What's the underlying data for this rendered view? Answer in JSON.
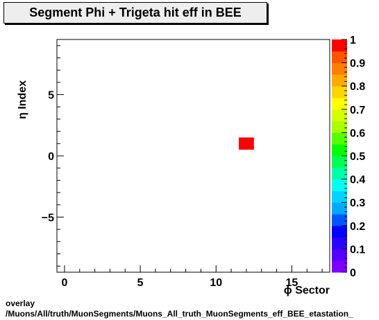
{
  "chart_data": {
    "type": "heatmap",
    "title": "Segment Phi + Trigeta hit eff in BEE",
    "xlabel": "ϕ Sector",
    "ylabel": "η Index",
    "xlim": [
      -0.5,
      17.5
    ],
    "ylim": [
      -9.5,
      9.5
    ],
    "x_ticks": [
      0,
      5,
      10,
      15
    ],
    "y_ticks": [
      -5,
      0,
      5
    ],
    "zlim": [
      0,
      1
    ],
    "z_ticks": [
      0,
      0.1,
      0.2,
      0.3,
      0.4,
      0.5,
      0.6,
      0.7,
      0.8,
      0.9,
      1
    ],
    "cells": [
      {
        "x": 12,
        "y": 1,
        "value": 1.0
      }
    ],
    "colormap": [
      "#7f00ff",
      "#5500ff",
      "#2a00ff",
      "#0000ff",
      "#0055ff",
      "#00aaff",
      "#00d4ff",
      "#00ffee",
      "#00ffaa",
      "#00ff55",
      "#00ff00",
      "#55ff00",
      "#aaff00",
      "#d4ff00",
      "#ffff00",
      "#ffd400",
      "#ffaa00",
      "#ff7f00",
      "#ff5500",
      "#ff0000"
    ]
  },
  "footer": {
    "line1": "overlay",
    "line2": "/Muons/All/truth/MuonSegments/Muons_All_truth_MuonSegments_eff_BEE_etastation_"
  }
}
